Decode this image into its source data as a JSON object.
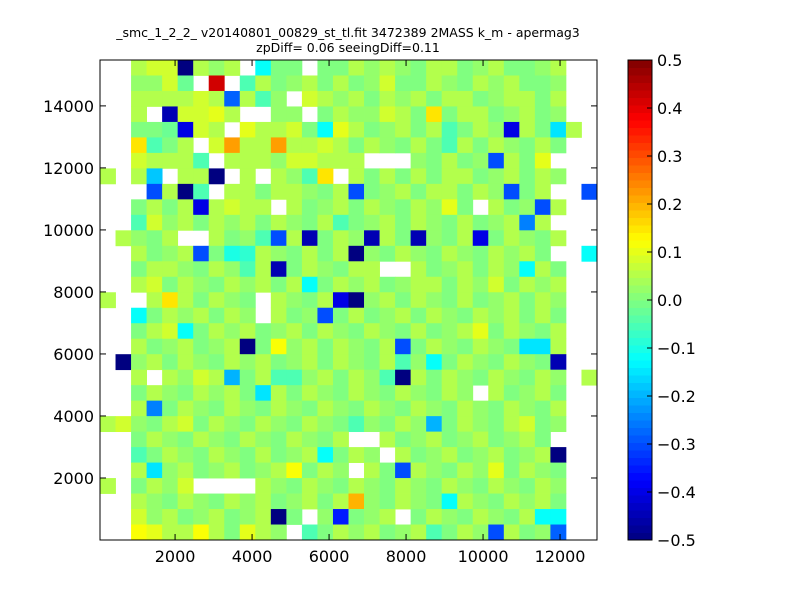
{
  "chart_data": {
    "type": "heatmap",
    "title": "_smc_1_2_2_ v20140801_00829_st_tl.fit 3472389 2MASS k_m - apermag3",
    "subtitle": "zpDiff= 0.06 seeingDiff=0.11",
    "xlabel": "",
    "ylabel": "",
    "xlim": [
      50,
      12960
    ],
    "ylim": [
      0,
      15480
    ],
    "xticks": [
      2000,
      4000,
      6000,
      8000,
      10000,
      12000
    ],
    "xtick_labels": [
      "2000",
      "4000",
      "6000",
      "8000",
      "10000",
      "12000"
    ],
    "yticks": [
      2000,
      4000,
      6000,
      8000,
      10000,
      12000,
      14000
    ],
    "ytick_labels": [
      "2000",
      "4000",
      "6000",
      "8000",
      "10000",
      "12000",
      "14000"
    ],
    "colormap": "jet",
    "clim": [
      -0.5,
      0.5
    ],
    "colorbar_ticks": [
      -0.5,
      -0.4,
      -0.3,
      -0.2,
      -0.1,
      0.0,
      0.1,
      0.2,
      0.3,
      0.4,
      0.5
    ],
    "colorbar_labels": [
      "−0.5",
      "−0.4",
      "−0.3",
      "−0.2",
      "−0.1",
      "0.0",
      "0.1",
      "0.2",
      "0.3",
      "0.4",
      "0.5"
    ],
    "grid_note": "rows listed top (high y) to bottom (low y); 32 columns across x",
    "rows": [
      [
        null,
        null,
        0.05,
        0.08,
        0.08,
        -0.5,
        0.05,
        0.02,
        0.05,
        null,
        -0.12,
        0.0,
        0.0,
        null,
        0.0,
        0.0,
        0.05,
        0.02,
        0.05,
        0.02,
        0.0,
        0.05,
        0.05,
        0.0,
        0.02,
        0.05,
        0.0,
        0.0,
        0.02,
        0.05,
        null,
        null
      ],
      [
        null,
        null,
        0.02,
        0.02,
        0.08,
        -0.02,
        null,
        0.42,
        null,
        -0.05,
        0.05,
        0.0,
        0.02,
        0.05,
        0.0,
        0.05,
        0.0,
        0.02,
        0.08,
        0.0,
        0.0,
        0.05,
        0.02,
        0.0,
        0.05,
        0.02,
        0.05,
        0.0,
        0.0,
        0.02,
        null,
        null
      ],
      [
        null,
        null,
        0.05,
        0.05,
        0.05,
        0.05,
        0.08,
        0.05,
        -0.28,
        0.05,
        -0.05,
        0.02,
        null,
        0.08,
        0.05,
        0.02,
        0.05,
        0.0,
        0.05,
        0.02,
        0.05,
        0.0,
        0.05,
        0.05,
        0.0,
        0.02,
        0.05,
        0.05,
        0.0,
        0.05,
        null,
        null
      ],
      [
        null,
        null,
        0.05,
        null,
        -0.45,
        0.08,
        0.08,
        0.1,
        0.05,
        null,
        null,
        0.02,
        0.02,
        null,
        0.0,
        0.05,
        0.02,
        0.02,
        0.08,
        0.05,
        0.0,
        0.15,
        0.0,
        0.05,
        0.05,
        0.0,
        0.02,
        0.05,
        0.0,
        0.02,
        null,
        null
      ],
      [
        null,
        null,
        0.0,
        0.0,
        -0.02,
        -0.4,
        0.08,
        0.05,
        null,
        0.1,
        0.05,
        0.05,
        0.08,
        0.0,
        -0.12,
        0.1,
        0.05,
        0.0,
        0.02,
        0.05,
        0.0,
        0.05,
        -0.05,
        0.0,
        0.05,
        0.02,
        -0.4,
        0.05,
        0.0,
        -0.15,
        0.05,
        null
      ],
      [
        null,
        null,
        0.15,
        -0.05,
        0.0,
        0.05,
        null,
        0.08,
        0.22,
        0.05,
        0.05,
        0.22,
        0.05,
        0.05,
        0.08,
        0.05,
        0.0,
        0.05,
        0.02,
        0.0,
        0.05,
        0.0,
        -0.05,
        0.05,
        0.0,
        0.05,
        0.02,
        0.0,
        0.05,
        0.0,
        null,
        null
      ],
      [
        null,
        null,
        0.08,
        0.05,
        0.05,
        0.05,
        -0.05,
        null,
        0.05,
        0.05,
        0.05,
        0.02,
        0.08,
        0.08,
        0.05,
        0.05,
        0.05,
        null,
        null,
        null,
        0.02,
        0.0,
        0.05,
        0.0,
        0.02,
        -0.3,
        0.05,
        0.0,
        0.1,
        null,
        null,
        null
      ],
      [
        0.05,
        null,
        0.05,
        -0.18,
        null,
        0.05,
        0.05,
        -0.5,
        null,
        0.05,
        null,
        0.05,
        0.02,
        -0.05,
        0.15,
        null,
        0.05,
        0.0,
        0.05,
        0.0,
        0.05,
        0.0,
        0.05,
        0.05,
        0.0,
        0.02,
        0.05,
        0.0,
        0.05,
        0.02,
        null,
        null
      ],
      [
        null,
        null,
        null,
        -0.3,
        0.05,
        -0.5,
        -0.05,
        null,
        0.05,
        0.05,
        0.0,
        0.05,
        0.05,
        0.02,
        0.0,
        0.05,
        -0.3,
        0.0,
        0.02,
        0.05,
        0.0,
        0.05,
        0.05,
        0.0,
        0.05,
        0.02,
        -0.3,
        0.0,
        0.05,
        null,
        null,
        -0.3
      ],
      [
        null,
        null,
        0.0,
        0.05,
        0.0,
        0.05,
        -0.4,
        0.05,
        0.08,
        0.05,
        0.05,
        null,
        0.05,
        0.0,
        0.02,
        0.05,
        0.0,
        0.05,
        0.02,
        0.0,
        0.05,
        0.02,
        0.1,
        0.0,
        null,
        0.05,
        0.0,
        0.02,
        -0.3,
        0.05,
        null,
        null
      ],
      [
        null,
        null,
        -0.05,
        0.08,
        0.02,
        0.05,
        0.0,
        0.05,
        0.02,
        0.05,
        0.0,
        0.05,
        0.02,
        0.0,
        0.05,
        -0.05,
        0.0,
        0.02,
        0.05,
        0.0,
        0.05,
        0.02,
        0.0,
        0.05,
        0.0,
        0.02,
        0.05,
        -0.25,
        0.05,
        null,
        null,
        null
      ],
      [
        null,
        0.05,
        0.02,
        0.0,
        0.05,
        null,
        null,
        0.05,
        0.0,
        0.02,
        -0.05,
        -0.3,
        0.05,
        -0.45,
        0.0,
        0.05,
        0.02,
        -0.45,
        0.05,
        0.0,
        -0.45,
        0.02,
        0.0,
        0.05,
        -0.4,
        0.0,
        0.05,
        0.02,
        0.0,
        0.05,
        null,
        null
      ],
      [
        null,
        null,
        0.05,
        0.0,
        0.02,
        0.05,
        -0.3,
        0.0,
        -0.1,
        -0.08,
        0.05,
        0.02,
        0.0,
        0.05,
        0.0,
        0.05,
        -0.5,
        0.02,
        0.0,
        0.05,
        0.02,
        0.0,
        0.05,
        0.02,
        0.0,
        0.05,
        0.02,
        0.05,
        0.0,
        null,
        null,
        -0.12
      ],
      [
        null,
        null,
        0.0,
        0.05,
        0.05,
        0.02,
        0.0,
        0.05,
        0.02,
        -0.05,
        0.05,
        -0.45,
        0.0,
        0.05,
        0.02,
        0.0,
        0.05,
        0.05,
        null,
        null,
        0.05,
        0.0,
        0.02,
        0.05,
        0.0,
        0.05,
        0.02,
        -0.12,
        0.05,
        0.0,
        null,
        null
      ],
      [
        null,
        null,
        0.05,
        0.08,
        0.0,
        0.05,
        0.02,
        0.0,
        0.05,
        0.02,
        0.05,
        0.0,
        0.05,
        -0.12,
        0.0,
        0.05,
        0.02,
        0.05,
        0.0,
        0.02,
        0.05,
        0.05,
        0.0,
        0.05,
        0.02,
        0.08,
        0.0,
        0.05,
        0.02,
        0.05,
        null,
        null
      ],
      [
        0.05,
        null,
        null,
        0.05,
        0.15,
        0.05,
        0.0,
        0.05,
        0.02,
        0.0,
        null,
        0.05,
        0.02,
        0.0,
        0.05,
        -0.4,
        -0.5,
        0.02,
        0.05,
        0.0,
        0.05,
        0.02,
        0.0,
        0.05,
        0.0,
        0.02,
        0.05,
        0.0,
        0.05,
        0.02,
        null,
        null
      ],
      [
        null,
        null,
        -0.12,
        0.0,
        0.05,
        0.02,
        0.05,
        0.0,
        0.05,
        0.02,
        null,
        0.05,
        0.0,
        0.02,
        -0.3,
        0.0,
        0.05,
        0.0,
        0.02,
        0.05,
        0.0,
        0.05,
        0.02,
        0.0,
        0.05,
        0.02,
        0.05,
        0.0,
        0.05,
        0.0,
        null,
        null
      ],
      [
        null,
        null,
        0.0,
        0.05,
        0.08,
        -0.12,
        0.0,
        0.05,
        0.02,
        0.05,
        0.0,
        0.02,
        0.05,
        0.0,
        0.05,
        0.02,
        0.0,
        0.05,
        0.02,
        0.0,
        0.05,
        0.0,
        0.02,
        0.05,
        0.1,
        0.0,
        0.05,
        0.02,
        0.0,
        0.05,
        null,
        null
      ],
      [
        null,
        null,
        0.05,
        0.0,
        0.02,
        0.05,
        0.0,
        0.02,
        0.05,
        -0.5,
        0.0,
        0.12,
        0.02,
        0.05,
        0.0,
        0.05,
        0.02,
        0.0,
        0.05,
        -0.3,
        0.0,
        0.05,
        0.02,
        0.0,
        0.05,
        0.02,
        0.0,
        -0.15,
        -0.15,
        0.05,
        null,
        null
      ],
      [
        null,
        -0.5,
        0.02,
        0.05,
        0.0,
        0.05,
        0.02,
        0.0,
        0.05,
        0.02,
        0.05,
        0.0,
        0.02,
        0.05,
        0.0,
        0.05,
        0.02,
        0.0,
        0.05,
        -0.05,
        0.02,
        -0.12,
        0.0,
        0.05,
        0.02,
        0.0,
        0.05,
        0.02,
        0.0,
        -0.45,
        null,
        null
      ],
      [
        null,
        null,
        0.05,
        null,
        0.05,
        0.02,
        0.08,
        0.05,
        -0.2,
        0.0,
        0.05,
        -0.05,
        -0.05,
        0.02,
        0.05,
        0.0,
        0.05,
        0.02,
        -0.05,
        -0.5,
        0.05,
        0.0,
        0.05,
        0.02,
        0.0,
        0.05,
        0.02,
        0.0,
        0.05,
        0.02,
        null,
        0.05
      ],
      [
        null,
        null,
        0.0,
        0.05,
        0.02,
        0.0,
        0.05,
        0.02,
        0.05,
        0.0,
        -0.15,
        0.05,
        0.0,
        0.05,
        0.02,
        0.0,
        0.05,
        0.02,
        0.0,
        0.05,
        0.02,
        0.0,
        0.05,
        0.02,
        null,
        0.05,
        0.0,
        0.02,
        0.05,
        0.0,
        null,
        null
      ],
      [
        null,
        null,
        0.05,
        -0.25,
        0.0,
        0.05,
        0.02,
        0.0,
        0.05,
        0.02,
        0.0,
        0.05,
        0.02,
        0.0,
        0.05,
        0.02,
        0.0,
        0.05,
        0.02,
        0.0,
        0.05,
        0.02,
        0.0,
        0.05,
        0.02,
        0.0,
        0.05,
        0.02,
        0.0,
        0.05,
        null,
        null
      ],
      [
        0.05,
        0.08,
        0.02,
        0.0,
        0.05,
        0.08,
        0.0,
        0.05,
        0.02,
        0.0,
        0.05,
        0.02,
        0.0,
        0.05,
        0.02,
        0.0,
        -0.05,
        0.02,
        0.0,
        0.05,
        0.02,
        -0.2,
        0.0,
        0.05,
        0.02,
        0.0,
        0.05,
        0.08,
        0.0,
        0.02,
        null,
        null
      ],
      [
        null,
        null,
        0.0,
        0.05,
        0.02,
        0.0,
        0.05,
        0.02,
        0.0,
        0.05,
        0.02,
        0.0,
        0.05,
        0.02,
        0.0,
        0.05,
        null,
        null,
        0.05,
        0.0,
        0.02,
        0.05,
        0.0,
        0.02,
        0.05,
        0.0,
        0.02,
        0.05,
        0.0,
        null,
        null,
        null
      ],
      [
        null,
        null,
        -0.05,
        0.0,
        0.05,
        0.02,
        0.0,
        0.05,
        0.02,
        0.0,
        0.05,
        0.0,
        0.02,
        0.05,
        -0.12,
        0.0,
        0.05,
        0.02,
        null,
        0.05,
        0.0,
        0.02,
        0.05,
        0.0,
        0.02,
        0.05,
        0.0,
        0.02,
        0.05,
        -0.5,
        null,
        null
      ],
      [
        null,
        null,
        0.05,
        -0.15,
        0.02,
        0.05,
        0.0,
        0.02,
        0.05,
        0.0,
        0.02,
        0.05,
        0.12,
        0.0,
        0.05,
        0.02,
        null,
        0.05,
        0.0,
        -0.3,
        0.05,
        0.02,
        0.0,
        0.05,
        0.02,
        0.1,
        0.0,
        0.05,
        0.02,
        0.0,
        null,
        null
      ],
      [
        0.05,
        null,
        0.0,
        0.05,
        0.02,
        0.08,
        null,
        null,
        null,
        null,
        0.05,
        0.02,
        0.0,
        0.05,
        0.02,
        0.0,
        0.05,
        0.02,
        0.0,
        0.05,
        0.02,
        0.0,
        0.05,
        0.02,
        0.0,
        0.05,
        0.02,
        0.0,
        0.05,
        0.02,
        null,
        null
      ],
      [
        null,
        null,
        0.05,
        0.02,
        0.0,
        0.05,
        0.02,
        0.0,
        0.05,
        0.02,
        0.05,
        0.0,
        0.02,
        0.05,
        0.0,
        0.05,
        0.2,
        0.02,
        0.0,
        0.05,
        0.02,
        0.0,
        -0.12,
        0.05,
        0.02,
        0.0,
        0.05,
        0.02,
        0.05,
        0.0,
        null,
        null
      ],
      [
        null,
        null,
        0.08,
        0.02,
        0.05,
        0.0,
        0.02,
        0.05,
        0.0,
        0.02,
        0.05,
        -0.5,
        0.0,
        null,
        0.02,
        -0.35,
        0.0,
        0.02,
        0.05,
        null,
        0.0,
        0.05,
        0.02,
        0.0,
        0.05,
        0.02,
        0.0,
        0.05,
        -0.12,
        -0.12,
        null,
        null
      ],
      [
        null,
        null,
        0.12,
        0.1,
        0.05,
        0.05,
        0.12,
        0.05,
        0.0,
        0.1,
        0.05,
        0.02,
        null,
        -0.05,
        0.0,
        0.05,
        0.02,
        0.05,
        0.0,
        0.02,
        0.05,
        -0.05,
        0.0,
        0.05,
        0.02,
        -0.3,
        0.05,
        0.0,
        0.02,
        -0.28,
        null,
        null
      ]
    ]
  }
}
